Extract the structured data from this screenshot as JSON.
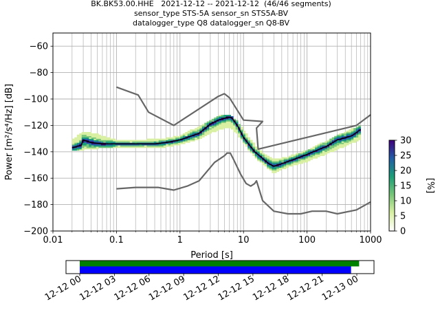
{
  "title": {
    "line1": "BK.BK53.00.HHE   2021-12-12 -- 2021-12-12  (46/46 segments)",
    "line2": "sensor_type STS-5A sensor_sn STS5A-BV",
    "line3": "datalogger_type Q8 datalogger_sn Q8-BV"
  },
  "colors": {
    "nlnm_nhnm": "#666666",
    "mean": "#000000",
    "coverage_data": "#008000",
    "coverage_gaps": "#0000ff",
    "colormap": [
      "#ffffff",
      "#d9f0a3",
      "#78c679",
      "#1b9e77",
      "#225ea8",
      "#3f007d"
    ]
  },
  "chart_data": [
    {
      "type": "heatmap",
      "xlabel": "Period [s]",
      "ylabel": "Power [m²/s⁴/Hz] [dB]",
      "xscale": "log",
      "xlim": [
        0.01,
        1000
      ],
      "ylim": [
        -200,
        -50
      ],
      "xticks": [
        {
          "value": 0.01,
          "label": "0.01"
        },
        {
          "value": 0.1,
          "label": "0.1"
        },
        {
          "value": 1,
          "label": "1"
        },
        {
          "value": 10,
          "label": "10"
        },
        {
          "value": 100,
          "label": "100"
        },
        {
          "value": 1000,
          "label": "1000"
        }
      ],
      "yticks": [
        {
          "value": -60,
          "label": "−60"
        },
        {
          "value": -80,
          "label": "−80"
        },
        {
          "value": -100,
          "label": "−100"
        },
        {
          "value": -120,
          "label": "−120"
        },
        {
          "value": -140,
          "label": "−140"
        },
        {
          "value": -160,
          "label": "−160"
        },
        {
          "value": -180,
          "label": "−180"
        },
        {
          "value": -200,
          "label": "−200"
        }
      ],
      "grid": true,
      "series": [
        {
          "name": "",
          "role": "high noise model",
          "points": [
            [
              0.1,
              -91
            ],
            [
              0.22,
              -97
            ],
            [
              0.32,
              -110
            ],
            [
              0.8,
              -120
            ],
            [
              4,
              -98
            ],
            [
              5,
              -96
            ],
            [
              6,
              -99
            ],
            [
              10,
              -116
            ],
            [
              20,
              -117
            ],
            [
              16,
              -122
            ],
            [
              17,
              -138
            ],
            [
              600,
              -120
            ],
            [
              1000,
              -112
            ]
          ]
        },
        {
          "name": "",
          "role": "low noise model",
          "points": [
            [
              0.1,
              -168
            ],
            [
              0.2,
              -167
            ],
            [
              0.45,
              -167
            ],
            [
              0.8,
              -169
            ],
            [
              1.3,
              -166
            ],
            [
              2,
              -162
            ],
            [
              3.5,
              -148
            ],
            [
              5,
              -143
            ],
            [
              5.5,
              -141
            ],
            [
              6.2,
              -141
            ],
            [
              7,
              -146
            ],
            [
              9,
              -157
            ],
            [
              11,
              -164
            ],
            [
              13,
              -166
            ],
            [
              15,
              -164
            ],
            [
              16,
              -162
            ],
            [
              20,
              -177
            ],
            [
              30,
              -185
            ],
            [
              50,
              -187
            ],
            [
              80,
              -187
            ],
            [
              120,
              -185
            ],
            [
              200,
              -185
            ],
            [
              300,
              -187
            ],
            [
              600,
              -184
            ],
            [
              1000,
              -178
            ]
          ]
        },
        {
          "name": "",
          "role": "mean",
          "points": [
            [
              0.02,
              -137
            ],
            [
              0.028,
              -135
            ],
            [
              0.03,
              -131
            ],
            [
              0.04,
              -133
            ],
            [
              0.06,
              -134
            ],
            [
              0.1,
              -134
            ],
            [
              0.2,
              -134
            ],
            [
              0.4,
              -134
            ],
            [
              0.6,
              -133
            ],
            [
              1,
              -131
            ],
            [
              2,
              -126
            ],
            [
              3,
              -119
            ],
            [
              4,
              -116
            ],
            [
              5.5,
              -114
            ],
            [
              6.5,
              -114
            ],
            [
              8,
              -120
            ],
            [
              10,
              -129
            ],
            [
              12,
              -134
            ],
            [
              15,
              -140
            ],
            [
              20,
              -145
            ],
            [
              25,
              -149
            ],
            [
              30,
              -151
            ],
            [
              40,
              -149
            ],
            [
              60,
              -146
            ],
            [
              100,
              -142
            ],
            [
              200,
              -136
            ],
            [
              300,
              -131
            ],
            [
              500,
              -128
            ],
            [
              700,
              -123
            ]
          ]
        }
      ],
      "heatmap_band": {
        "upper_db": [
          [
            0.02,
            -131
          ],
          [
            0.03,
            -125
          ],
          [
            0.05,
            -127
          ],
          [
            0.1,
            -131
          ],
          [
            0.3,
            -131
          ],
          [
            0.6,
            -130
          ],
          [
            1,
            -128
          ],
          [
            2,
            -121
          ],
          [
            4,
            -113
          ],
          [
            6,
            -112
          ],
          [
            8,
            -117
          ],
          [
            10,
            -124
          ],
          [
            15,
            -135
          ],
          [
            20,
            -141
          ],
          [
            30,
            -146
          ],
          [
            50,
            -144
          ],
          [
            100,
            -139
          ],
          [
            300,
            -128
          ],
          [
            700,
            -120
          ]
        ],
        "lower_db": [
          [
            0.02,
            -139
          ],
          [
            0.03,
            -138
          ],
          [
            0.05,
            -137
          ],
          [
            0.1,
            -137
          ],
          [
            0.3,
            -137
          ],
          [
            0.6,
            -136
          ],
          [
            1,
            -134
          ],
          [
            2,
            -130
          ],
          [
            4,
            -123
          ],
          [
            6,
            -121
          ],
          [
            8,
            -126
          ],
          [
            10,
            -133
          ],
          [
            15,
            -144
          ],
          [
            20,
            -149
          ],
          [
            30,
            -156
          ],
          [
            50,
            -151
          ],
          [
            100,
            -147
          ],
          [
            300,
            -138
          ],
          [
            700,
            -130
          ]
        ]
      },
      "colorbar": {
        "label": "[%]",
        "range": [
          0,
          30
        ],
        "ticks": [
          {
            "value": 0,
            "label": "0"
          },
          {
            "value": 5,
            "label": "5"
          },
          {
            "value": 10,
            "label": "10"
          },
          {
            "value": 15,
            "label": "15"
          },
          {
            "value": 20,
            "label": "20"
          },
          {
            "value": 25,
            "label": "25"
          },
          {
            "value": 30,
            "label": "30"
          }
        ]
      }
    },
    {
      "type": "timeline",
      "xlabel": "",
      "ticks": [
        "12-12 00",
        "12-12 03",
        "12-12 06",
        "12-12 09",
        "12-12 12",
        "12-12 15",
        "12-12 18",
        "12-12 21",
        "12-13 00"
      ],
      "coverage": [
        {
          "role": "data",
          "start_hour": 0,
          "end_hour": 24.2
        },
        {
          "role": "psd segments",
          "start_hour": 0,
          "end_hour": 23.5
        }
      ]
    }
  ]
}
